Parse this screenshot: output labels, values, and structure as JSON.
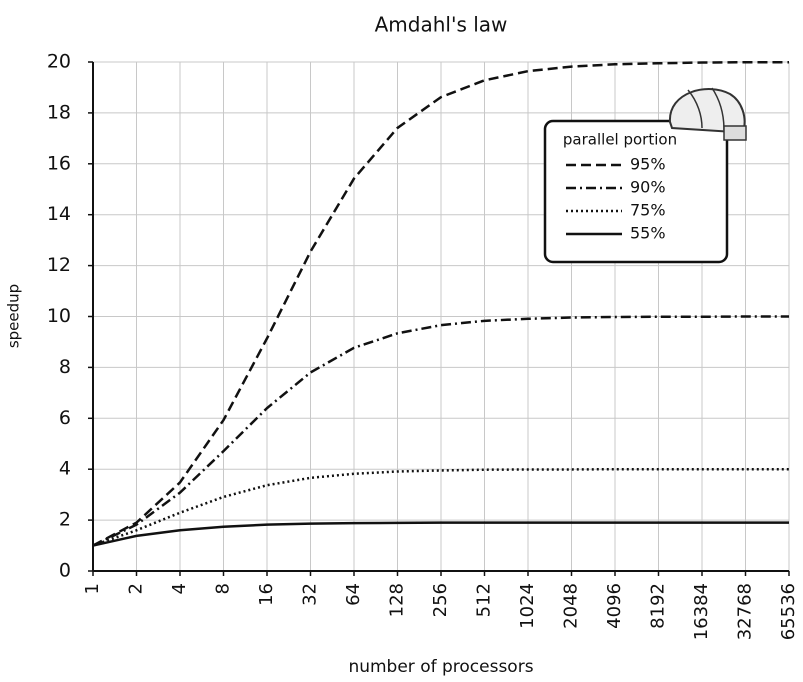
{
  "chart_data": {
    "type": "line",
    "title": "Amdahl's law",
    "x_label": "number of processors",
    "y_label": "speedup",
    "x": [
      1,
      2,
      4,
      8,
      16,
      32,
      64,
      128,
      256,
      512,
      1024,
      2048,
      4096,
      8192,
      16384,
      32768,
      65536
    ],
    "x_log_base": 2,
    "xlim": [
      1,
      65536
    ],
    "xticks": [
      1,
      2,
      4,
      8,
      16,
      32,
      64,
      128,
      256,
      512,
      1024,
      2048,
      4096,
      8192,
      16384,
      32768,
      65536
    ],
    "ylim": [
      0,
      20
    ],
    "yticks": [
      0,
      2,
      4,
      6,
      8,
      10,
      12,
      14,
      16,
      18,
      20
    ],
    "grid": true,
    "legend_title": "parallel portion",
    "legend_position": "upper right",
    "series": [
      {
        "name": "95%",
        "color": "#111111",
        "dash": "10 5",
        "values": [
          1,
          1.9,
          3.48,
          5.93,
          9.14,
          12.55,
          15.42,
          17.41,
          18.62,
          19.28,
          19.64,
          19.82,
          19.91,
          19.95,
          19.98,
          19.99,
          19.99
        ]
      },
      {
        "name": "90%",
        "color": "#111111",
        "dash": "10 4 2 4",
        "values": [
          1,
          1.82,
          3.08,
          4.71,
          6.4,
          7.8,
          8.77,
          9.34,
          9.66,
          9.83,
          9.91,
          9.96,
          9.98,
          9.99,
          9.99,
          10,
          10
        ]
      },
      {
        "name": "75%",
        "color": "#111111",
        "dash": "2 3",
        "values": [
          1,
          1.6,
          2.29,
          2.91,
          3.37,
          3.66,
          3.82,
          3.91,
          3.95,
          3.98,
          3.99,
          3.99,
          4,
          4,
          4,
          4,
          4
        ]
      },
      {
        "name": "55%",
        "color": "#111111",
        "dash": "none",
        "values": [
          1,
          1.38,
          1.6,
          1.74,
          1.82,
          1.86,
          1.88,
          1.89,
          1.9,
          1.9,
          1.9,
          1.9,
          1.9,
          1.9,
          1.9,
          1.9,
          1.9
        ]
      }
    ]
  }
}
